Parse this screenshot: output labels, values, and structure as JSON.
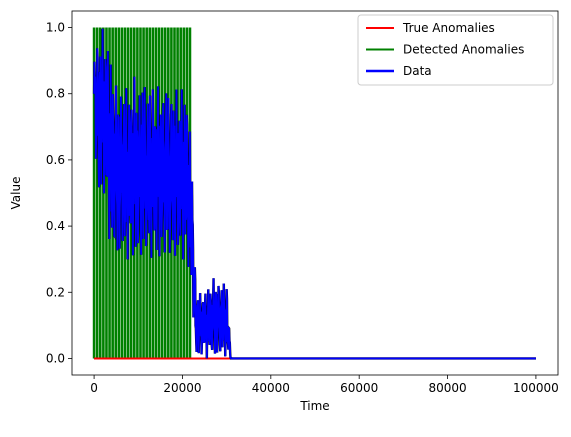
{
  "chart_data": {
    "type": "line",
    "title": "",
    "xlabel": "Time",
    "ylabel": "Value",
    "xlim": [
      -5000,
      105000
    ],
    "ylim": [
      -0.05,
      1.05
    ],
    "xticks": [
      0,
      20000,
      40000,
      60000,
      80000,
      100000
    ],
    "xtick_labels": [
      "0",
      "20000",
      "40000",
      "60000",
      "80000",
      "100000"
    ],
    "yticks": [
      0.0,
      0.2,
      0.4,
      0.6,
      0.8,
      1.0
    ],
    "ytick_labels": [
      "0.0",
      "0.2",
      "0.4",
      "0.6",
      "0.8",
      "1.0"
    ],
    "grid": false,
    "legend_position": "top-right",
    "series": [
      {
        "name": "True Anomalies",
        "color": "#ff0000",
        "x": [
          0,
          100000
        ],
        "values": [
          0,
          0
        ]
      },
      {
        "name": "Detected Anomalies",
        "color": "#008000",
        "x_pulses": [
          0,
          700,
          1400,
          2100,
          2800,
          3500,
          4200,
          4900,
          5600,
          6300,
          7000,
          7700,
          8400,
          9100,
          9800,
          10500,
          11200,
          11900,
          12600,
          13300,
          14000,
          14700,
          15400,
          16100,
          16800,
          17500,
          18200,
          18900,
          19600,
          20300,
          21000,
          21700
        ],
        "pulse_low": 0,
        "pulse_high": 1
      },
      {
        "name": "Data",
        "color": "#0000ff",
        "x": [
          0,
          1000,
          2000,
          3000,
          4000,
          5000,
          6000,
          7000,
          8000,
          9000,
          10000,
          11000,
          12000,
          13000,
          14000,
          15000,
          16000,
          17000,
          18000,
          19000,
          20000,
          21000,
          22000,
          23000,
          24000,
          25000,
          26000,
          27000,
          28000,
          29000,
          30000,
          31000,
          35000,
          50000,
          70000,
          100000
        ],
        "min": [
          0.68,
          0.45,
          0.5,
          0.4,
          0.3,
          0.29,
          0.3,
          0.28,
          0.3,
          0.29,
          0.28,
          0.3,
          0.28,
          0.3,
          0.28,
          0.29,
          0.3,
          0.28,
          0.3,
          0.28,
          0.3,
          0.27,
          0.2,
          0.0,
          0.0,
          0.0,
          0.0,
          0.0,
          0.0,
          0.0,
          0.0,
          0.0,
          0.0,
          0.0,
          0.0,
          0.0
        ],
        "max": [
          0.92,
          1.0,
          1.0,
          1.0,
          0.88,
          0.85,
          0.82,
          0.84,
          0.82,
          0.86,
          0.82,
          0.87,
          0.82,
          0.85,
          0.82,
          0.83,
          0.84,
          0.82,
          0.83,
          0.82,
          0.83,
          0.81,
          0.65,
          0.22,
          0.2,
          0.21,
          0.22,
          0.25,
          0.24,
          0.23,
          0.24,
          0.0,
          0.0,
          0.0,
          0.0,
          0.0
        ]
      }
    ]
  }
}
